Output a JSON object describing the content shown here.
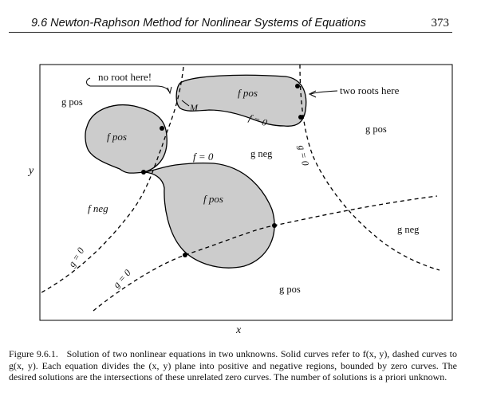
{
  "header": {
    "title": "9.6 Newton-Raphson Method for Nonlinear Systems of Equations",
    "page_number": "373"
  },
  "figure": {
    "axis_x": "x",
    "axis_y": "y",
    "callouts": {
      "no_root": "no root here!",
      "two_roots": "two roots here"
    },
    "point_m": "M",
    "labels": {
      "g_pos": "g pos",
      "g_neg": "g neg",
      "f_pos": "f pos",
      "f_neg": "f neg",
      "f_zero": "f = 0",
      "g_zero": "g = 0"
    }
  },
  "caption": {
    "label": "Figure 9.6.1.",
    "text": "Solution of two nonlinear equations in two unknowns. Solid curves refer to f(x, y), dashed curves to g(x, y). Each equation divides the (x, y) plane into positive and negative regions, bounded by zero curves. The desired solutions are the intersections of these unrelated zero curves. The number of solutions is a priori unknown."
  }
}
